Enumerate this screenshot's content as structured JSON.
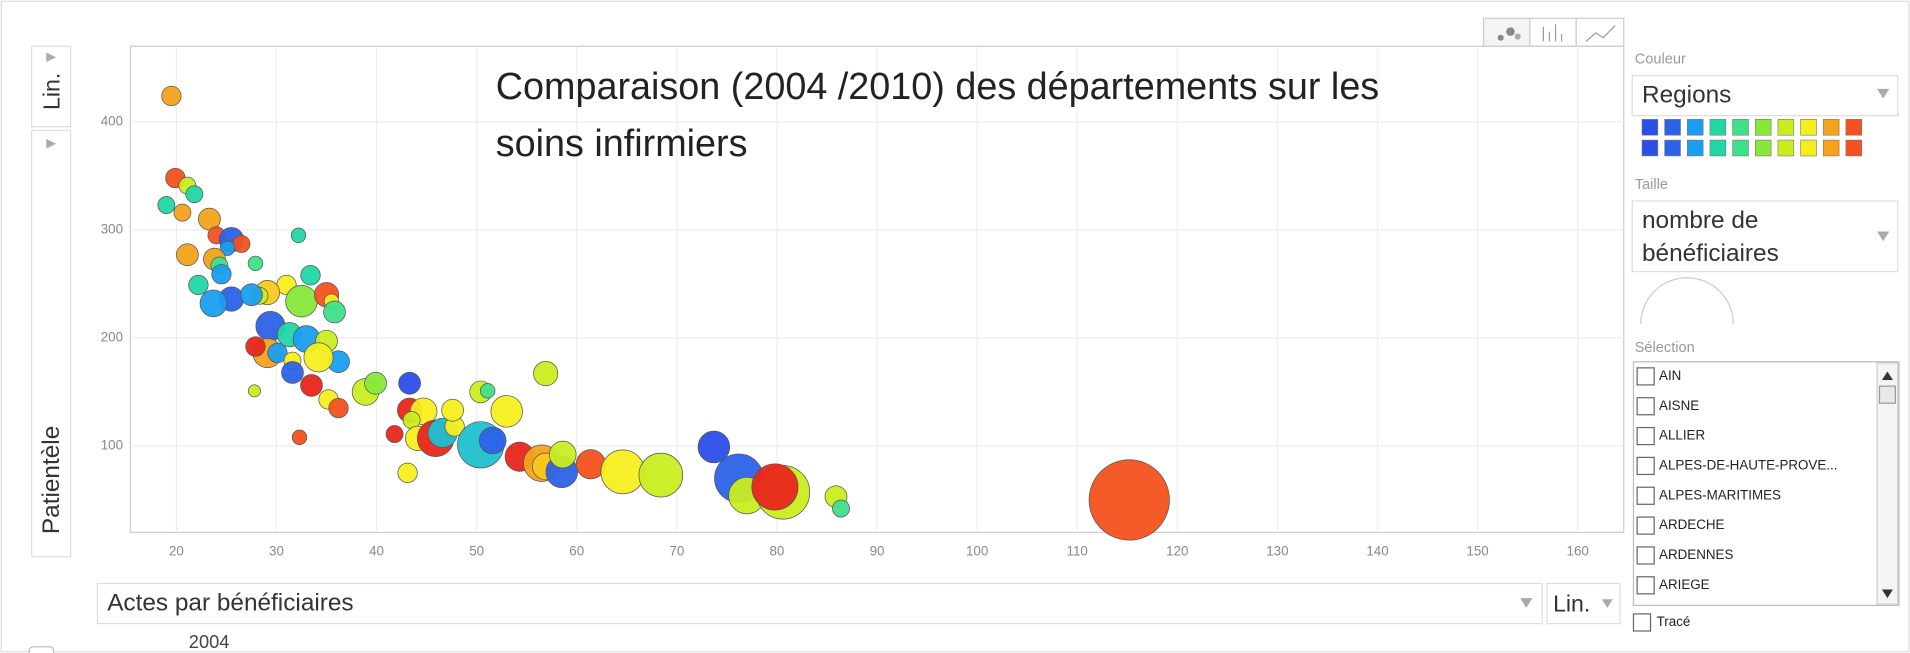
{
  "chart_data": {
    "type": "bubble",
    "title_lines": [
      "Comparaison (2004 /2010) des départements sur les",
      "soins infirmiers"
    ],
    "x_label": "Actes par bénéficiaires",
    "y_label": "Patientèle",
    "x_scale": "Lin.",
    "y_scale": "Lin.",
    "year": "2004",
    "xlim": [
      15.4,
      164.6
    ],
    "ylim": [
      20,
      470
    ],
    "xticks": [
      20,
      30,
      40,
      50,
      60,
      70,
      80,
      90,
      100,
      110,
      120,
      130,
      140,
      150,
      160
    ],
    "yticks": [
      100,
      200,
      300,
      400
    ],
    "grid": true,
    "x": [
      19.5,
      19.9,
      21.1,
      21.8,
      19,
      20.6,
      23.3,
      24,
      25.5,
      26.5,
      25.1,
      21.1,
      23.8,
      24.3,
      27.9,
      24.5,
      22.2,
      32.2,
      33.4,
      31,
      29.1,
      28.3,
      25.5,
      27.5,
      23.7,
      32.5,
      35,
      35.5,
      35.8,
      29.4,
      29.1,
      31.3,
      33,
      35,
      36.2,
      30.1,
      27.9,
      31.6,
      34.2,
      31.6,
      33.5,
      35.2,
      36.2,
      27.8,
      32.3,
      38.9,
      39.9,
      43.3,
      43.3,
      44.7,
      43.5,
      41.8,
      44.1,
      45.9,
      46.6,
      47.8,
      47.6,
      50.4,
      51.1,
      50.4,
      51.6,
      53,
      56.9,
      54.3,
      56.5,
      56.9,
      58.5,
      58.6,
      61.4,
      64.6,
      68.4,
      43.1,
      73.7,
      76.2,
      77,
      80.6,
      79.8,
      85.9,
      86.4,
      115.2
    ],
    "values": [
      424,
      348,
      341,
      333,
      323,
      316,
      310,
      295,
      291,
      287,
      283,
      277,
      273,
      267,
      269,
      259,
      249,
      295,
      258,
      249,
      242,
      239,
      236,
      240,
      232,
      234,
      240,
      234,
      224,
      211,
      186,
      203,
      199,
      197,
      178,
      186,
      192,
      179,
      182,
      168,
      156,
      143,
      135,
      151,
      108,
      150,
      158,
      158,
      133,
      132,
      124,
      111,
      107,
      107,
      112,
      118,
      133,
      150,
      151,
      101,
      105,
      132,
      167,
      90,
      84,
      81,
      76,
      92,
      83,
      76,
      73,
      75,
      99,
      70,
      54,
      57,
      62,
      53,
      42,
      50
    ],
    "sizes": [
      64,
      64,
      49,
      49,
      49,
      49,
      81,
      49,
      100,
      49,
      36,
      81,
      81,
      49,
      36,
      64,
      64,
      36,
      64,
      64,
      100,
      49,
      100,
      81,
      121,
      169,
      100,
      36,
      81,
      144,
      144,
      100,
      121,
      81,
      81,
      64,
      64,
      49,
      144,
      81,
      81,
      64,
      64,
      25,
      36,
      121,
      81,
      81,
      100,
      121,
      49,
      49,
      100,
      225,
      144,
      64,
      81,
      81,
      36,
      361,
      121,
      169,
      100,
      144,
      225,
      121,
      169,
      121,
      144,
      324,
      324,
      64,
      169,
      400,
      225,
      484,
      361,
      81,
      49,
      1089
    ],
    "colors": [
      "#f7a21b",
      "#f4511e",
      "#c8ee20",
      "#22d6a5",
      "#22d6a5",
      "#f7a21b",
      "#f7a21b",
      "#f4511e",
      "#2b62e8",
      "#f4511e",
      "#1a9ef0",
      "#f7a21b",
      "#f7a21b",
      "#3ee08a",
      "#3ee08a",
      "#1a9ef0",
      "#22d6a5",
      "#22d6a5",
      "#22d6a5",
      "#f5ee1d",
      "#f5c91d",
      "#c8ee20",
      "#2b62e8",
      "#1a9ef0",
      "#1a9ef0",
      "#88e83a",
      "#f4511e",
      "#f5ee1d",
      "#3ee08a",
      "#2b62e8",
      "#f7a21b",
      "#22d6a5",
      "#1a9ef0",
      "#c8ee20",
      "#1a9ef0",
      "#1a9ef0",
      "#e8261c",
      "#f5ee1d",
      "#f5ee1d",
      "#2b62e8",
      "#e8261c",
      "#f5ee1d",
      "#f4511e",
      "#c8ee20",
      "#f4511e",
      "#c8ee20",
      "#88e83a",
      "#2b4ee8",
      "#e8261c",
      "#f5ee1d",
      "#c8ee20",
      "#e8261c",
      "#f5ee1d",
      "#e8261c",
      "#1ec0d0",
      "#f5ee1d",
      "#f5ee1d",
      "#c8ee20",
      "#3ee08a",
      "#1ec0d0",
      "#2b62e8",
      "#f5ee1d",
      "#c8ee20",
      "#e8261c",
      "#f7a21b",
      "#f5c91d",
      "#2b62e8",
      "#c8ee20",
      "#f4511e",
      "#f5ee1d",
      "#c8ee20",
      "#f5ee1d",
      "#2b4ee8",
      "#2b62e8",
      "#c8ee20",
      "#c8ee20",
      "#e8261c",
      "#c8ee20",
      "#3ee08a",
      "#f4511e"
    ]
  },
  "controls": {
    "color_label": "Couleur",
    "color_value": "Regions",
    "size_label": "Taille",
    "size_value_lines": [
      "nombre de",
      "bénéficiaires"
    ],
    "selection_label": "Sélection",
    "selection_items": [
      "AIN",
      "AISNE",
      "ALLIER",
      "ALPES-DE-HAUTE-PROVE...",
      "ALPES-MARITIMES",
      "ARDECHE",
      "ARDENNES",
      "ARIEGE"
    ],
    "trace_label": "Tracé"
  }
}
